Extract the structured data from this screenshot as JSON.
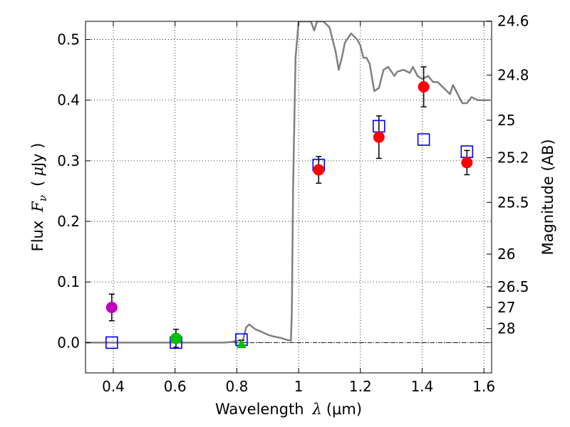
{
  "chart_data": {
    "type": "scatter",
    "xlabel": "Wavelength",
    "xlabel_symbol": "λ",
    "xlabel_unit": "(μm)",
    "ylabel": "Flux",
    "ylabel_symbol": "F",
    "ylabel_subscript": "ν",
    "ylabel_unit_open": "(",
    "ylabel_unit_mu": "μ",
    "ylabel_unit_rest": "Jy )",
    "ylabel_right": "Magnitude (AB)",
    "xlim": [
      0.31,
      1.625
    ],
    "ylim": [
      -0.05,
      0.53
    ],
    "grid": true,
    "x_ticks": [
      {
        "value": 0.4,
        "label": "0.4"
      },
      {
        "value": 0.6,
        "label": "0.6"
      },
      {
        "value": 0.8,
        "label": "0.8"
      },
      {
        "value": 1.0,
        "label": "1"
      },
      {
        "value": 1.2,
        "label": "1.2"
      },
      {
        "value": 1.4,
        "label": "1.4"
      },
      {
        "value": 1.6,
        "label": "1.6"
      }
    ],
    "y_ticks": [
      {
        "value": 0.0,
        "label": "0.0"
      },
      {
        "value": 0.1,
        "label": "0.1"
      },
      {
        "value": 0.2,
        "label": "0.2"
      },
      {
        "value": 0.3,
        "label": "0.3"
      },
      {
        "value": 0.4,
        "label": "0.4"
      },
      {
        "value": 0.5,
        "label": "0.5"
      }
    ],
    "right_ticks": [
      {
        "flux": 0.5305,
        "label": "24.6"
      },
      {
        "flux": 0.4413,
        "label": "24.8"
      },
      {
        "flux": 0.3669,
        "label": "25"
      },
      {
        "flux": 0.305,
        "label": "25.2"
      },
      {
        "flux": 0.2314,
        "label": "25.5"
      },
      {
        "flux": 0.146,
        "label": "26"
      },
      {
        "flux": 0.0921,
        "label": "26.5"
      },
      {
        "flux": 0.0581,
        "label": "27"
      },
      {
        "flux": 0.0231,
        "label": "28"
      }
    ],
    "zero_line": 0.0,
    "model_sed": {
      "name": "model spectrum",
      "color": "#808080",
      "x": [
        0.31,
        0.4,
        0.5,
        0.6,
        0.7,
        0.76,
        0.78,
        0.8,
        0.82,
        0.83,
        0.84,
        0.86,
        0.88,
        0.9,
        0.92,
        0.94,
        0.96,
        0.975,
        0.978,
        0.982,
        0.99,
        1.0,
        1.02,
        1.04,
        1.05,
        1.06,
        1.08,
        1.1,
        1.12,
        1.13,
        1.14,
        1.15,
        1.17,
        1.19,
        1.2,
        1.21,
        1.22,
        1.23,
        1.245,
        1.26,
        1.275,
        1.29,
        1.31,
        1.32,
        1.34,
        1.36,
        1.37,
        1.385,
        1.4,
        1.42,
        1.435,
        1.45,
        1.47,
        1.49,
        1.5,
        1.515,
        1.53,
        1.545,
        1.56,
        1.58,
        1.6,
        1.62
      ],
      "y": [
        0.0,
        0.0,
        0.0,
        0.0,
        0.0,
        0.0,
        0.001,
        0.003,
        0.004,
        0.025,
        0.03,
        0.022,
        0.018,
        0.013,
        0.01,
        0.008,
        0.005,
        0.003,
        0.05,
        0.25,
        0.47,
        0.53,
        0.53,
        0.53,
        0.515,
        0.53,
        0.53,
        0.52,
        0.48,
        0.45,
        0.47,
        0.495,
        0.51,
        0.5,
        0.49,
        0.47,
        0.47,
        0.46,
        0.415,
        0.42,
        0.45,
        0.455,
        0.44,
        0.447,
        0.45,
        0.445,
        0.455,
        0.44,
        0.435,
        0.44,
        0.43,
        0.43,
        0.42,
        0.41,
        0.425,
        0.41,
        0.395,
        0.395,
        0.405,
        0.4,
        0.4,
        0.4
      ]
    },
    "series": [
      {
        "name": "violet point",
        "marker": "circle",
        "color": "#bf00bf",
        "points": [
          {
            "x": 0.395,
            "y": 0.058,
            "yerr": 0.022
          }
        ]
      },
      {
        "name": "green point",
        "marker": "circle",
        "color": "#00bf00",
        "points": [
          {
            "x": 0.603,
            "y": 0.007,
            "yerr": 0.015
          }
        ]
      },
      {
        "name": "green triangle",
        "marker": "triangle",
        "color": "#00bf00",
        "points": [
          {
            "x": 0.815,
            "y": -0.002,
            "yerr": 0.006
          }
        ]
      },
      {
        "name": "red points",
        "marker": "circle",
        "color": "#ff0000",
        "points": [
          {
            "x": 1.065,
            "y": 0.285,
            "yerr": 0.022
          },
          {
            "x": 1.26,
            "y": 0.339,
            "yerr": 0.035
          },
          {
            "x": 1.405,
            "y": 0.422,
            "yerr": 0.033
          },
          {
            "x": 1.545,
            "y": 0.297,
            "yerr": 0.02
          }
        ]
      },
      {
        "name": "model band fluxes",
        "marker": "open-square",
        "color": "#0000ff",
        "points": [
          {
            "x": 0.395,
            "y": 0.0
          },
          {
            "x": 0.603,
            "y": 0.0
          },
          {
            "x": 0.815,
            "y": 0.005
          },
          {
            "x": 1.065,
            "y": 0.293
          },
          {
            "x": 1.26,
            "y": 0.357
          },
          {
            "x": 1.405,
            "y": 0.335
          },
          {
            "x": 1.545,
            "y": 0.315
          }
        ]
      }
    ]
  }
}
